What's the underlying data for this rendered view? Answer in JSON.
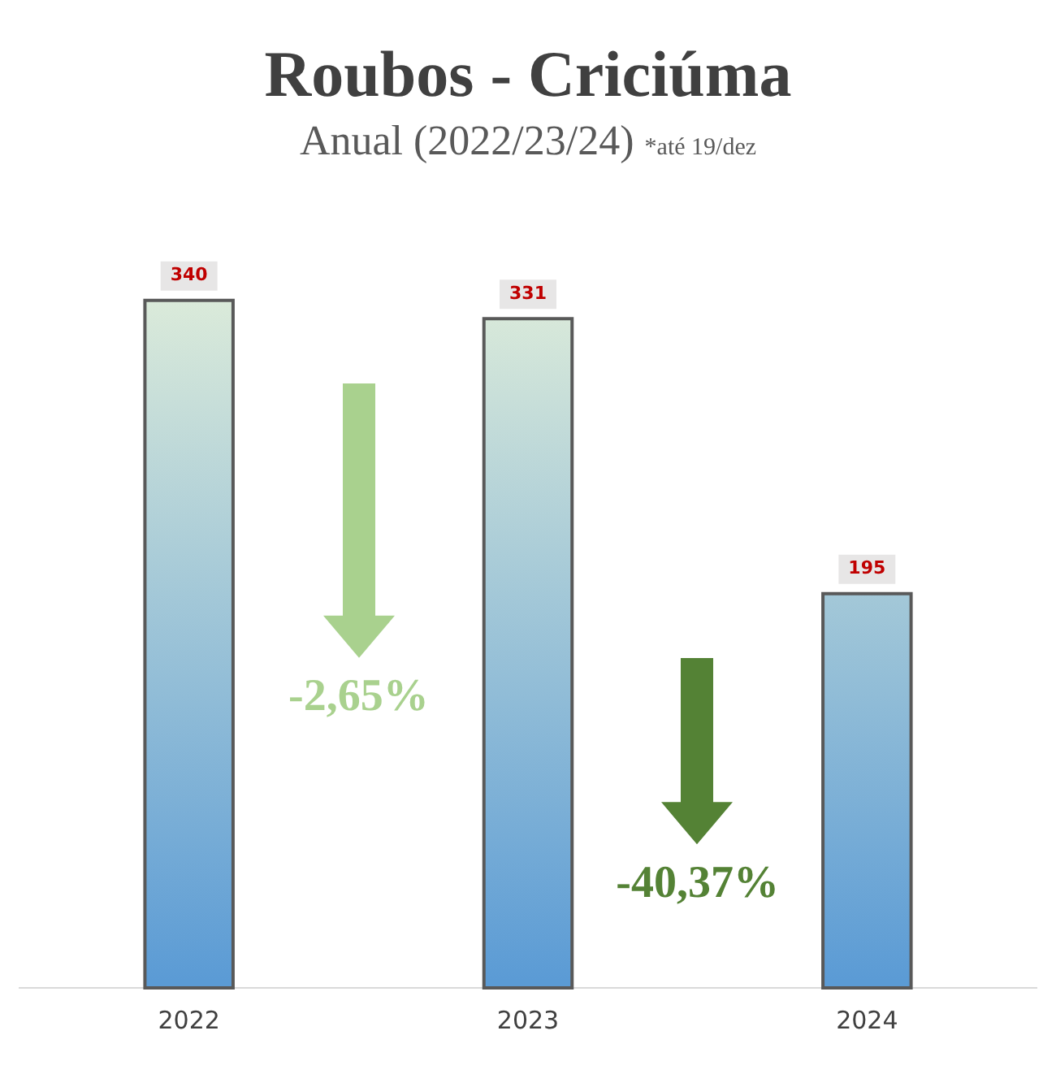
{
  "chart_data": {
    "type": "bar",
    "title": "Roubos - Criciúma",
    "subtitle": "Anual (2022/23/24)",
    "annotations": [
      "*até 19/dez",
      "-2,65%",
      "-40,37%"
    ],
    "categories": [
      "2022",
      "2023",
      "2024"
    ],
    "values": [
      340,
      331,
      195
    ],
    "color": "#5b9bd5",
    "ylim": [
      0,
      360
    ],
    "tick_labels": "x",
    "grid": false,
    "data_labels": true
  }
}
